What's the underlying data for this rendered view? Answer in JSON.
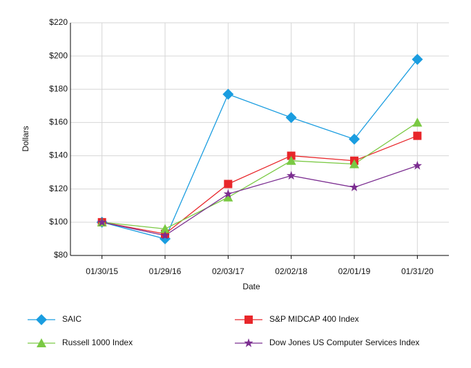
{
  "chart_data": {
    "type": "line",
    "x_label": "Date",
    "y_label": "Dollars",
    "categories": [
      "01/30/15",
      "01/29/16",
      "02/03/17",
      "02/02/18",
      "02/01/19",
      "01/31/20"
    ],
    "series": [
      {
        "name": "SAIC",
        "color": "#1a9de0",
        "marker": "diamond",
        "values": [
          100,
          90,
          177,
          163,
          150,
          198
        ]
      },
      {
        "name": "S&P MIDCAP 400 Index",
        "color": "#e8262a",
        "marker": "square",
        "values": [
          100,
          93,
          123,
          140,
          137,
          152
        ]
      },
      {
        "name": "Russell 1000 Index",
        "color": "#7ac943",
        "marker": "triangle",
        "values": [
          100,
          96,
          115,
          137,
          135,
          160
        ]
      },
      {
        "name": "Dow Jones US Computer Services Index",
        "color": "#7b2d90",
        "marker": "star",
        "values": [
          100,
          92,
          117,
          128,
          121,
          134
        ]
      }
    ],
    "ylim": [
      80,
      220
    ],
    "yticks": [
      {
        "value": 80,
        "label": "$80"
      },
      {
        "value": 100,
        "label": "$100"
      },
      {
        "value": 120,
        "label": "$120"
      },
      {
        "value": 140,
        "label": "$140"
      },
      {
        "value": 160,
        "label": "$160"
      },
      {
        "value": 180,
        "label": "$180"
      },
      {
        "value": 200,
        "label": "$200"
      },
      {
        "value": 220,
        "label": "$220"
      }
    ],
    "grid": true
  }
}
